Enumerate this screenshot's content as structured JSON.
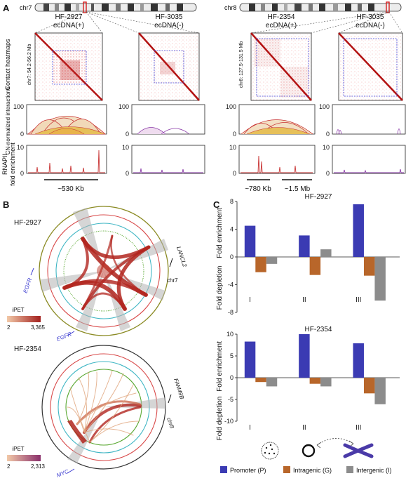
{
  "panel_a": {
    "label": "A",
    "chr_left": "chr7",
    "chr_right": "chr8",
    "samples": [
      {
        "name": "HF-2927",
        "status": "ecDNA(+)"
      },
      {
        "name": "HF-3035",
        "status": "ecDNA(-)"
      },
      {
        "name": "HF-2354",
        "status": "ecDNA(+)"
      },
      {
        "name": "HF-3035",
        "status": "ecDNA(-)"
      }
    ],
    "row_labels": {
      "heatmaps": "Contact heatmaps",
      "interactions": "CN-normalized interactions",
      "rnapii_line1": "RNAPII",
      "rnapii_line2": "fold enrichment"
    },
    "region_left": "chr7: 54.2-56.2 Mb",
    "region_right": "chr8: 127.5-131.5 Mb",
    "interaction_ticks": [
      "100",
      "0"
    ],
    "rnapii_ticks": [
      "10",
      "0"
    ],
    "scalebars": [
      "~530 Kb",
      "~780 Kb",
      "~1.5 Mb"
    ]
  },
  "panel_b": {
    "label": "B",
    "top": {
      "sample": "HF-2927",
      "chromosome": "chr7",
      "genes": [
        "LANCL2",
        "EGFR",
        "EGFR"
      ],
      "legend_title": "iPET",
      "legend_min": "2",
      "legend_max": "3,365"
    },
    "bottom": {
      "sample": "HF-2354",
      "chromosome": "chr8",
      "genes": [
        "FAM49B",
        "MYC"
      ],
      "legend_title": "iPET",
      "legend_min": "2",
      "legend_max": "2,313"
    }
  },
  "panel_c": {
    "label": "C",
    "ylabel_top": "Fold enrichment",
    "ylabel_bottom": "Fold depletion",
    "legend": [
      {
        "name": "Promoter (P)",
        "color": "#3b3bb3"
      },
      {
        "name": "Intragenic (G)",
        "color": "#b8662a"
      },
      {
        "name": "Intergenic (I)",
        "color": "#8c8c8c"
      }
    ]
  },
  "chart_data": [
    {
      "type": "bar",
      "title": "HF-2927",
      "categories": [
        "I",
        "II",
        "III"
      ],
      "series": [
        {
          "name": "Promoter (P)",
          "values": [
            4.5,
            3.1,
            7.6
          ]
        },
        {
          "name": "Intragenic (G)",
          "values": [
            -2.2,
            -2.6,
            -2.7
          ]
        },
        {
          "name": "Intergenic (I)",
          "values": [
            -1.0,
            1.1,
            -6.3
          ]
        }
      ],
      "ylim": [
        -8,
        8
      ],
      "yticks": [
        "8",
        "4",
        "0",
        "-4",
        "-8"
      ]
    },
    {
      "type": "bar",
      "title": "HF-2354",
      "categories": [
        "I",
        "II",
        "III"
      ],
      "series": [
        {
          "name": "Promoter (P)",
          "values": [
            8.3,
            10.0,
            7.9
          ]
        },
        {
          "name": "Intragenic (G)",
          "values": [
            -1.0,
            -1.4,
            -3.6
          ]
        },
        {
          "name": "Intergenic (I)",
          "values": [
            -2.0,
            -2.0,
            -6.1
          ]
        }
      ],
      "ylim": [
        -10,
        10
      ],
      "yticks": [
        "10",
        "5",
        "0",
        "-5",
        "-10"
      ]
    }
  ]
}
